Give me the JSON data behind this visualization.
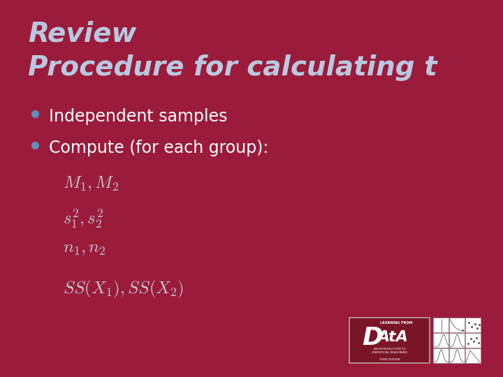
{
  "background_color": "#9B1B3B",
  "title_line1": "Review",
  "title_line2": "Procedure for calculating t",
  "title_color": "#B8C8E0",
  "title_fontsize": 28,
  "bullet_color": "#FFFFFF",
  "bullet_dot_color": "#6090C0",
  "bullet_fontsize": 17,
  "bullet_items": [
    "Independent samples",
    "Compute (for each group):"
  ],
  "math_color": "#C0C8D8",
  "math_fontsize": 17,
  "math_items": [
    "$M_1, M_2$",
    "$s_1^2, s_2^2$",
    "$n_1, n_2$",
    "$SS(X_1), SS(X_2)$"
  ],
  "fig_width": 7.2,
  "fig_height": 5.4,
  "dpi": 100
}
